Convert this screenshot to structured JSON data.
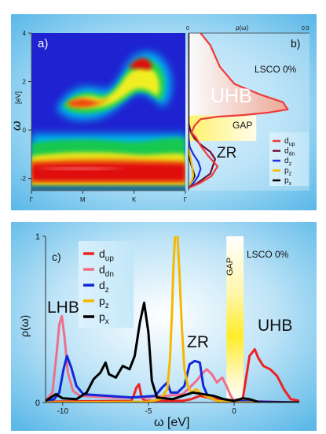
{
  "chart_data": [
    {
      "type": "heatmap",
      "panel_label": "a)",
      "ylabel_symbol": "ω",
      "ylabel_unit": "[eV]",
      "ylim": [
        -2.5,
        4
      ],
      "yticks": [
        -2,
        0,
        2,
        4
      ],
      "xticks": [
        "Γ",
        "M",
        "K",
        "Γ"
      ],
      "colormap": [
        "#1010c8",
        "#00c8ff",
        "#00e060",
        "#ffff00",
        "#ff8000",
        "#e00000",
        "#ffffff"
      ]
    },
    {
      "type": "area",
      "panel_label": "b)",
      "title": "ρ(ω)",
      "system_label": "LSCO 0%",
      "xlim": [
        0,
        0.5
      ],
      "xticks": [
        "0",
        "0.5"
      ],
      "ylim": [
        -2.5,
        4
      ],
      "region_labels": [
        "UHB",
        "GAP",
        "ZR"
      ],
      "legend": [
        "d",
        "d",
        "d",
        "p",
        "p"
      ],
      "legend_sub": [
        "up",
        "dn",
        "z",
        "z",
        "x"
      ],
      "series": [
        {
          "name_base": "d",
          "name_sub": "up",
          "color": "#ee3a3a",
          "points": [
            [
              0.0,
              -2.4
            ],
            [
              0.045,
              -2.2
            ],
            [
              0.095,
              -1.9
            ],
            [
              0.12,
              -1.5
            ],
            [
              0.08,
              -1.05
            ],
            [
              0.05,
              -0.65
            ],
            [
              0.03,
              -0.3
            ],
            [
              0.012,
              -0.1
            ],
            [
              0.025,
              0.18
            ],
            [
              0.05,
              0.45
            ],
            [
              0.12,
              0.55
            ],
            [
              0.23,
              0.62
            ],
            [
              0.33,
              0.72
            ],
            [
              0.41,
              0.85
            ],
            [
              0.39,
              1.15
            ],
            [
              0.3,
              1.45
            ],
            [
              0.19,
              1.9
            ],
            [
              0.13,
              2.6
            ],
            [
              0.09,
              3.5
            ],
            [
              0.05,
              4.0
            ]
          ]
        },
        {
          "name_base": "d",
          "name_sub": "dn",
          "color": "#6e0a37",
          "points": [
            [
              0.0,
              -2.4
            ],
            [
              0.035,
              -2.2
            ],
            [
              0.09,
              -1.8
            ],
            [
              0.11,
              -1.2
            ],
            [
              0.09,
              -0.9
            ],
            [
              0.05,
              -0.6
            ],
            [
              0.025,
              -0.35
            ],
            [
              0.01,
              -0.1
            ],
            [
              0.0,
              0.3
            ],
            [
              0.0,
              4.0
            ]
          ]
        },
        {
          "name_base": "d",
          "name_sub": "z",
          "color": "#1e2fdc",
          "points": [
            [
              0.0,
              -2.4
            ],
            [
              0.02,
              -2.2
            ],
            [
              0.04,
              -1.9
            ],
            [
              0.05,
              -1.6
            ],
            [
              0.04,
              -1.3
            ],
            [
              0.02,
              -1.0
            ],
            [
              0.005,
              -0.7
            ],
            [
              0.0,
              -0.3
            ],
            [
              0.0,
              4.0
            ]
          ]
        },
        {
          "name_base": "p",
          "name_sub": "z",
          "color": "#f5b800",
          "points": [
            [
              0.0,
              -2.4
            ],
            [
              0.01,
              -2.2
            ],
            [
              0.02,
              -1.9
            ],
            [
              0.015,
              -1.5
            ],
            [
              0.005,
              -1.0
            ],
            [
              0.0,
              -0.5
            ],
            [
              0.0,
              4.0
            ]
          ]
        },
        {
          "name_base": "p",
          "name_sub": "x",
          "color": "#000000",
          "points": [
            [
              0.0,
              -2.4
            ],
            [
              0.01,
              -2.2
            ],
            [
              0.025,
              -1.9
            ],
            [
              0.015,
              -1.55
            ],
            [
              0.005,
              -1.2
            ],
            [
              0.0,
              -0.8
            ],
            [
              0.0,
              4.0
            ]
          ]
        }
      ]
    },
    {
      "type": "line",
      "panel_label": "c)",
      "system_label": "LSCO 0%",
      "xlabel": "ω  [eV]",
      "ylabel": "ρ(ω)",
      "xlim": [
        -11,
        3.8
      ],
      "ylim": [
        0,
        1
      ],
      "xticks": [
        -10,
        -5,
        0
      ],
      "yticks": [
        0,
        1
      ],
      "region_labels": [
        "LHB",
        "ZR",
        "UHB",
        "GAP"
      ],
      "legend": [
        "d",
        "d",
        "d",
        "p",
        "p"
      ],
      "legend_sub": [
        "up",
        "dn",
        "z",
        "z",
        "x"
      ],
      "series": [
        {
          "name_base": "d",
          "name_sub": "up",
          "color": "#ee2222",
          "points": [
            [
              -11,
              0.005
            ],
            [
              -6,
              0.01
            ],
            [
              -5.9,
              0.03
            ],
            [
              -5.7,
              0.09
            ],
            [
              -5.55,
              0.11
            ],
            [
              -5.4,
              0.03
            ],
            [
              -5.2,
              0.01
            ],
            [
              -3,
              0.01
            ],
            [
              -2.5,
              0.02
            ],
            [
              -2,
              0.04
            ],
            [
              -1.5,
              0.03
            ],
            [
              -1,
              0.02
            ],
            [
              -0.3,
              0.01
            ],
            [
              0.5,
              0.02
            ],
            [
              0.9,
              0.28
            ],
            [
              1.2,
              0.32
            ],
            [
              1.4,
              0.27
            ],
            [
              1.7,
              0.22
            ],
            [
              2.1,
              0.2
            ],
            [
              2.5,
              0.16
            ],
            [
              2.9,
              0.08
            ],
            [
              3.3,
              0.02
            ],
            [
              3.8,
              0.01
            ]
          ]
        },
        {
          "name_base": "d",
          "name_sub": "dn",
          "color": "#f06e8c",
          "points": [
            [
              -11,
              0.01
            ],
            [
              -10.6,
              0.06
            ],
            [
              -10.35,
              0.3
            ],
            [
              -10.2,
              0.47
            ],
            [
              -10.05,
              0.52
            ],
            [
              -9.9,
              0.4
            ],
            [
              -9.7,
              0.18
            ],
            [
              -9.4,
              0.07
            ],
            [
              -9,
              0.04
            ],
            [
              -7,
              0.03
            ],
            [
              -5,
              0.03
            ],
            [
              -4,
              0.04
            ],
            [
              -3,
              0.05
            ],
            [
              -2.6,
              0.09
            ],
            [
              -2.2,
              0.13
            ],
            [
              -1.9,
              0.17
            ],
            [
              -1.6,
              0.2
            ],
            [
              -1.3,
              0.17
            ],
            [
              -1.0,
              0.12
            ],
            [
              -0.7,
              0.15
            ],
            [
              -0.45,
              0.1
            ],
            [
              -0.2,
              0.04
            ],
            [
              0,
              0.01
            ],
            [
              3.8,
              0.0
            ]
          ]
        },
        {
          "name_base": "d",
          "name_sub": "z",
          "color": "#1428d6",
          "points": [
            [
              -11,
              0.01
            ],
            [
              -10.5,
              0.02
            ],
            [
              -10.2,
              0.06
            ],
            [
              -9.95,
              0.2
            ],
            [
              -9.75,
              0.28
            ],
            [
              -9.5,
              0.21
            ],
            [
              -9.2,
              0.1
            ],
            [
              -8.8,
              0.05
            ],
            [
              -6,
              0.03
            ],
            [
              -4.6,
              0.04
            ],
            [
              -4.2,
              0.09
            ],
            [
              -3.9,
              0.12
            ],
            [
              -3.7,
              0.06
            ],
            [
              -3.3,
              0.06
            ],
            [
              -2.9,
              0.1
            ],
            [
              -2.6,
              0.23
            ],
            [
              -2.3,
              0.25
            ],
            [
              -2.0,
              0.24
            ],
            [
              -1.8,
              0.1
            ],
            [
              -1.5,
              0.03
            ],
            [
              -1.0,
              0.01
            ],
            [
              3.8,
              0.0
            ]
          ]
        },
        {
          "name_base": "p",
          "name_sub": "z",
          "color": "#f5b800",
          "points": [
            [
              -11,
              0.0
            ],
            [
              -5,
              0.005
            ],
            [
              -4.3,
              0.02
            ],
            [
              -3.9,
              0.08
            ],
            [
              -3.75,
              0.25
            ],
            [
              -3.62,
              0.55
            ],
            [
              -3.55,
              0.8
            ],
            [
              -3.45,
              1.0
            ],
            [
              -3.3,
              1.0
            ],
            [
              -3.2,
              0.8
            ],
            [
              -3.05,
              0.45
            ],
            [
              -2.9,
              0.2
            ],
            [
              -2.7,
              0.1
            ],
            [
              -2.5,
              0.06
            ],
            [
              -2.2,
              0.08
            ],
            [
              -1.9,
              0.05
            ],
            [
              -1.0,
              0.01
            ],
            [
              0,
              0.0
            ],
            [
              3.8,
              0.0
            ]
          ]
        },
        {
          "name_base": "p",
          "name_sub": "x",
          "color": "#000000",
          "points": [
            [
              -11,
              0.01
            ],
            [
              -10.4,
              0.05
            ],
            [
              -10.0,
              0.025
            ],
            [
              -9.2,
              0.02
            ],
            [
              -8.6,
              0.06
            ],
            [
              -8.2,
              0.14
            ],
            [
              -7.8,
              0.18
            ],
            [
              -7.5,
              0.24
            ],
            [
              -7.3,
              0.17
            ],
            [
              -6.9,
              0.15
            ],
            [
              -6.5,
              0.22
            ],
            [
              -6.1,
              0.2
            ],
            [
              -5.8,
              0.28
            ],
            [
              -5.5,
              0.48
            ],
            [
              -5.25,
              0.6
            ],
            [
              -5.0,
              0.42
            ],
            [
              -4.8,
              0.13
            ],
            [
              -4.5,
              0.03
            ],
            [
              -3.6,
              0.02
            ],
            [
              -3.0,
              0.04
            ],
            [
              -2.4,
              0.06
            ],
            [
              -1.8,
              0.05
            ],
            [
              -1.2,
              0.04
            ],
            [
              -0.6,
              0.02
            ],
            [
              0,
              0.01
            ],
            [
              0.5,
              0.025
            ],
            [
              0.9,
              0.02
            ],
            [
              1.5,
              0.0
            ],
            [
              3.8,
              0.0
            ]
          ]
        }
      ]
    }
  ]
}
